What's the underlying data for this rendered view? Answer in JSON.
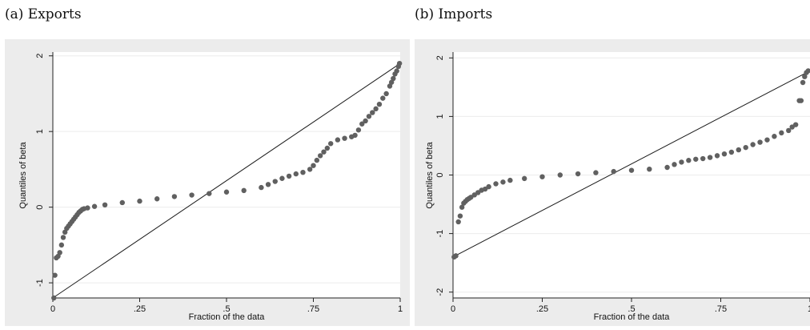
{
  "panels": [
    {
      "caption": "(a) Exports"
    },
    {
      "caption": "(b) Imports"
    }
  ],
  "chart_data": [
    {
      "type": "scatter",
      "title": "",
      "xlabel": "Fraction of the data",
      "ylabel": "Quantiles of beta",
      "xlim": [
        0,
        1
      ],
      "ylim": [
        -1.2,
        2.05
      ],
      "xticks": [
        0,
        0.25,
        0.5,
        0.75,
        1
      ],
      "xtick_labels": [
        "0",
        ".25",
        ".5",
        ".75",
        "1"
      ],
      "yticks": [
        -1,
        0,
        1,
        2
      ],
      "ytick_labels": [
        "-1",
        "0",
        "1",
        "2"
      ],
      "grid": true,
      "legend": "none",
      "colors": {
        "points": "#606060",
        "line": "#1a1a1a",
        "background": "#ececec"
      },
      "reference_line": [
        [
          0,
          -1.2
        ],
        [
          1,
          1.9
        ]
      ],
      "series": [
        {
          "x": [
            0.003,
            0.006,
            0.01,
            0.015,
            0.02,
            0.025,
            0.03,
            0.035,
            0.04,
            0.045,
            0.05,
            0.055,
            0.06,
            0.065,
            0.07,
            0.075,
            0.08,
            0.085,
            0.09,
            0.1,
            0.12,
            0.15,
            0.2,
            0.25,
            0.3,
            0.35,
            0.4,
            0.45,
            0.5,
            0.55,
            0.6,
            0.62,
            0.64,
            0.66,
            0.68,
            0.7,
            0.72,
            0.74,
            0.75,
            0.76,
            0.77,
            0.78,
            0.79,
            0.8,
            0.82,
            0.84,
            0.86,
            0.87,
            0.88,
            0.89,
            0.9,
            0.91,
            0.92,
            0.93,
            0.94,
            0.95,
            0.96,
            0.97,
            0.975,
            0.98,
            0.985,
            0.99,
            0.995,
            0.998
          ],
          "y": [
            -1.2,
            -0.9,
            -0.67,
            -0.65,
            -0.6,
            -0.5,
            -0.4,
            -0.33,
            -0.28,
            -0.25,
            -0.22,
            -0.19,
            -0.16,
            -0.13,
            -0.1,
            -0.07,
            -0.05,
            -0.03,
            -0.02,
            -0.01,
            0.01,
            0.03,
            0.06,
            0.08,
            0.11,
            0.14,
            0.16,
            0.18,
            0.2,
            0.22,
            0.26,
            0.3,
            0.34,
            0.38,
            0.41,
            0.44,
            0.46,
            0.5,
            0.55,
            0.62,
            0.68,
            0.73,
            0.78,
            0.84,
            0.89,
            0.91,
            0.93,
            0.95,
            1.02,
            1.1,
            1.14,
            1.2,
            1.25,
            1.3,
            1.36,
            1.44,
            1.5,
            1.6,
            1.65,
            1.7,
            1.76,
            1.8,
            1.86,
            1.9
          ]
        }
      ]
    },
    {
      "type": "scatter",
      "title": "",
      "xlabel": "Fraction of the data",
      "ylabel": "Quantiles of beta",
      "xlim": [
        0,
        1
      ],
      "ylim": [
        -2.1,
        2.1
      ],
      "xticks": [
        0,
        0.25,
        0.5,
        0.75,
        1
      ],
      "xtick_labels": [
        "0",
        ".25",
        ".5",
        ".75",
        "1"
      ],
      "yticks": [
        -2,
        -1,
        0,
        1,
        2
      ],
      "ytick_labels": [
        "-2",
        "-1",
        "0",
        "1",
        "2"
      ],
      "grid": true,
      "legend": "none",
      "colors": {
        "points": "#606060",
        "line": "#1a1a1a",
        "background": "#ececec"
      },
      "reference_line": [
        [
          0,
          -1.4
        ],
        [
          1,
          1.78
        ]
      ],
      "series": [
        {
          "x": [
            0.003,
            0.008,
            0.015,
            0.02,
            0.025,
            0.03,
            0.035,
            0.04,
            0.045,
            0.05,
            0.06,
            0.07,
            0.08,
            0.09,
            0.1,
            0.12,
            0.14,
            0.16,
            0.2,
            0.25,
            0.3,
            0.35,
            0.4,
            0.45,
            0.5,
            0.55,
            0.6,
            0.62,
            0.64,
            0.66,
            0.68,
            0.7,
            0.72,
            0.74,
            0.76,
            0.78,
            0.8,
            0.82,
            0.84,
            0.86,
            0.88,
            0.9,
            0.92,
            0.94,
            0.95,
            0.96,
            0.97,
            0.975,
            0.98,
            0.985,
            0.99,
            0.995
          ],
          "y": [
            -1.4,
            -1.38,
            -0.8,
            -0.7,
            -0.55,
            -0.48,
            -0.45,
            -0.42,
            -0.4,
            -0.38,
            -0.34,
            -0.3,
            -0.26,
            -0.24,
            -0.2,
            -0.15,
            -0.12,
            -0.09,
            -0.06,
            -0.03,
            0.0,
            0.02,
            0.04,
            0.06,
            0.08,
            0.1,
            0.13,
            0.18,
            0.22,
            0.25,
            0.27,
            0.28,
            0.3,
            0.33,
            0.36,
            0.39,
            0.43,
            0.47,
            0.52,
            0.56,
            0.6,
            0.66,
            0.72,
            0.76,
            0.82,
            0.86,
            1.27,
            1.27,
            1.58,
            1.68,
            1.75,
            1.78
          ]
        }
      ]
    }
  ]
}
